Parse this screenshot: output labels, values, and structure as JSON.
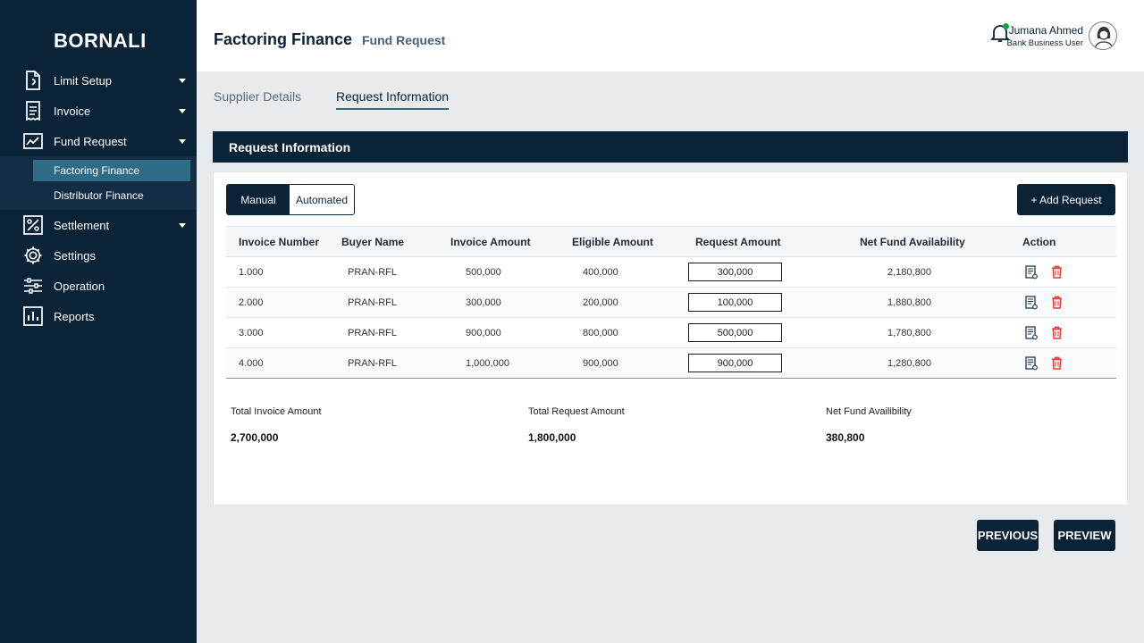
{
  "sidebar": {
    "brand": "BORNALI",
    "items": [
      {
        "label": "Limit Setup",
        "icon": "document-icon"
      },
      {
        "label": "Invoice",
        "icon": "receipt-icon"
      },
      {
        "label": "Fund Request",
        "icon": "trend-chart-icon"
      },
      {
        "label": "Settlement",
        "icon": "percent-icon"
      },
      {
        "label": "Settings",
        "icon": "gear-icon"
      },
      {
        "label": "Operation",
        "icon": "sliders-icon"
      },
      {
        "label": "Reports",
        "icon": "bar-chart-icon"
      }
    ],
    "sub_items": [
      {
        "label": "Factoring Finance",
        "active": true
      },
      {
        "label": "Distributor Finance",
        "active": false
      }
    ]
  },
  "header": {
    "title": "Factoring Finance",
    "subtitle": "Fund Request",
    "user_name": "Jumana Ahmed",
    "user_role": "Bank Business User"
  },
  "tabs": [
    {
      "label": "Supplier Details",
      "active": false
    },
    {
      "label": "Request Information",
      "active": true
    }
  ],
  "section_title": "Request Information",
  "mode_toggle": {
    "manual": "Manual",
    "automated": "Automated",
    "selected": "Manual"
  },
  "add_request_label": "+ Add Request",
  "table": {
    "columns": [
      "Invoice Number",
      "Buyer Name",
      "Invoice Amount",
      "Eligible Amount",
      "Request Amount",
      "Net Fund Availability",
      "Action"
    ],
    "rows": [
      {
        "invoice_number": "1.000",
        "buyer": "PRAN-RFL",
        "invoice_amount": "500,000",
        "eligible_amount": "400,000",
        "request_amount": "300,000",
        "net_fund": "2,180,800"
      },
      {
        "invoice_number": "2.000",
        "buyer": "PRAN-RFL",
        "invoice_amount": "300,000",
        "eligible_amount": "200,000",
        "request_amount": "100,000",
        "net_fund": "1,880,800"
      },
      {
        "invoice_number": "3.000",
        "buyer": "PRAN-RFL",
        "invoice_amount": "900,000",
        "eligible_amount": "800,000",
        "request_amount": "500,000",
        "net_fund": "1,780,800"
      },
      {
        "invoice_number": "4.000",
        "buyer": "PRAN-RFL",
        "invoice_amount": "1,000,000",
        "eligible_amount": "900,000",
        "request_amount": "900,000",
        "net_fund": "1,280,800"
      }
    ]
  },
  "totals": {
    "invoice_label": "Total Invoice Amount",
    "invoice_value": "2,700,000",
    "request_label": "Total Request Amount",
    "request_value": "1,800,000",
    "net_label": "Net Fund Availibility",
    "net_value": "380,800"
  },
  "buttons": {
    "previous": "PREVIOUS",
    "preview": "PREVIEW"
  },
  "colors": {
    "primary": "#0b2336",
    "active_sub": "#2e6b85",
    "delete": "#e53935",
    "notification_dot": "#1aa04a"
  }
}
